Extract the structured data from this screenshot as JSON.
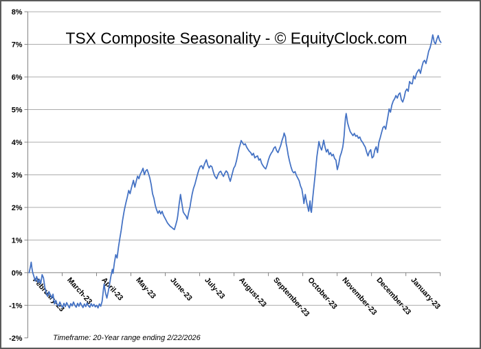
{
  "chart_data": {
    "type": "line",
    "title": "TSX Composite Seasonality - © EquityClock.com",
    "footer": "Timeframe:  20-Year range ending 2/22/2026",
    "legend": null,
    "grid": true,
    "line_color": "#4472C4",
    "gridline_color": "#ABABAB",
    "axis_color": "#808080",
    "ylim": [
      -2,
      8
    ],
    "y_tick_values": [
      8,
      7,
      6,
      5,
      4,
      3,
      2,
      1,
      0,
      -1,
      -2
    ],
    "y_tick_labels": [
      "8%",
      "7%",
      "6%",
      "5%",
      "4%",
      "3%",
      "2%",
      "1%",
      "0%",
      "-1%",
      "-2%"
    ],
    "x_labels": [
      "February-23",
      "March-23",
      "April-23",
      "May-23",
      "June-23",
      "July-23",
      "August-23",
      "September-23",
      "October-23",
      "November-23",
      "December-23",
      "January-23"
    ],
    "x_axis_note": "x of each point = position along the 12-month axis (0 = start of February, 605 = end of January, ~2.4 units per trading day); y = cumulative seasonal gain in percent",
    "series": [
      [
        2,
        0
      ],
      [
        4,
        0.2
      ],
      [
        5,
        0.32
      ],
      [
        6,
        0.15
      ],
      [
        7,
        0.02
      ],
      [
        9,
        -0.12
      ],
      [
        11,
        -0.26
      ],
      [
        13,
        -0.12
      ],
      [
        15,
        -0.3
      ],
      [
        17,
        -0.2
      ],
      [
        19,
        -0.34
      ],
      [
        21,
        -0.06
      ],
      [
        23,
        -0.16
      ],
      [
        25,
        -0.45
      ],
      [
        27,
        -0.62
      ],
      [
        29,
        -0.72
      ],
      [
        31,
        -0.58
      ],
      [
        33,
        -0.68
      ],
      [
        35,
        -0.78
      ],
      [
        37,
        -0.66
      ],
      [
        39,
        -0.96
      ],
      [
        41,
        -0.85
      ],
      [
        43,
        -0.97
      ],
      [
        45,
        -1.02
      ],
      [
        47,
        -0.9
      ],
      [
        49,
        -1
      ],
      [
        51,
        -1.07
      ],
      [
        53,
        -0.94
      ],
      [
        55,
        -1.04
      ],
      [
        57,
        -0.92
      ],
      [
        59,
        -1
      ],
      [
        61,
        -1.08
      ],
      [
        63,
        -0.95
      ],
      [
        65,
        -1.02
      ],
      [
        67,
        -0.9
      ],
      [
        69,
        -1
      ],
      [
        71,
        -1.06
      ],
      [
        73,
        -0.94
      ],
      [
        75,
        -1.03
      ],
      [
        77,
        -0.92
      ],
      [
        79,
        -1
      ],
      [
        81,
        -1.07
      ],
      [
        83,
        -0.96
      ],
      [
        85,
        -1.04
      ],
      [
        87,
        -0.93
      ],
      [
        89,
        -1.02
      ],
      [
        91,
        -1.06
      ],
      [
        93,
        -0.95
      ],
      [
        95,
        -1.03
      ],
      [
        97,
        -0.97
      ],
      [
        99,
        -1.05
      ],
      [
        101,
        -1
      ],
      [
        103,
        -1.08
      ],
      [
        105,
        -0.96
      ],
      [
        107,
        -1.03
      ],
      [
        109,
        -0.88
      ],
      [
        110,
        -0.7
      ],
      [
        111,
        -0.5
      ],
      [
        112,
        -0.35
      ],
      [
        113,
        -0.5
      ],
      [
        114,
        -0.62
      ],
      [
        116,
        -0.78
      ],
      [
        118,
        -0.58
      ],
      [
        120,
        -0.34
      ],
      [
        122,
        -0.1
      ],
      [
        124,
        0.1
      ],
      [
        125,
        -0.02
      ],
      [
        127,
        0.3
      ],
      [
        129,
        0.55
      ],
      [
        131,
        0.45
      ],
      [
        133,
        0.78
      ],
      [
        135,
        1.05
      ],
      [
        137,
        1.3
      ],
      [
        139,
        1.6
      ],
      [
        141,
        1.85
      ],
      [
        142,
        1.96
      ],
      [
        144,
        2.15
      ],
      [
        146,
        2.32
      ],
      [
        148,
        2.52
      ],
      [
        150,
        2.42
      ],
      [
        152,
        2.6
      ],
      [
        155,
        2.83
      ],
      [
        157,
        2.62
      ],
      [
        159,
        2.8
      ],
      [
        161,
        2.96
      ],
      [
        163,
        2.88
      ],
      [
        165,
        3.02
      ],
      [
        167,
        3.1
      ],
      [
        169,
        3.2
      ],
      [
        171,
        3
      ],
      [
        173,
        3.12
      ],
      [
        175,
        3.16
      ],
      [
        177,
        3.04
      ],
      [
        179,
        2.9
      ],
      [
        181,
        2.7
      ],
      [
        183,
        2.42
      ],
      [
        185,
        2.28
      ],
      [
        187,
        2.06
      ],
      [
        189,
        1.92
      ],
      [
        191,
        1.82
      ],
      [
        193,
        1.9
      ],
      [
        195,
        1.8
      ],
      [
        197,
        1.88
      ],
      [
        199,
        1.76
      ],
      [
        201,
        1.68
      ],
      [
        203,
        1.6
      ],
      [
        205,
        1.52
      ],
      [
        207,
        1.47
      ],
      [
        209,
        1.42
      ],
      [
        211,
        1.39
      ],
      [
        213,
        1.35
      ],
      [
        215,
        1.32
      ],
      [
        217,
        1.46
      ],
      [
        219,
        1.62
      ],
      [
        220,
        1.75
      ],
      [
        222,
        2.1
      ],
      [
        224,
        2.4
      ],
      [
        226,
        2.12
      ],
      [
        228,
        1.86
      ],
      [
        230,
        1.79
      ],
      [
        232,
        1.74
      ],
      [
        234,
        1.64
      ],
      [
        236,
        1.85
      ],
      [
        238,
        2.02
      ],
      [
        239,
        2.16
      ],
      [
        241,
        2.4
      ],
      [
        243,
        2.58
      ],
      [
        245,
        2.7
      ],
      [
        247,
        2.86
      ],
      [
        249,
        3.02
      ],
      [
        251,
        3.16
      ],
      [
        253,
        3.26
      ],
      [
        255,
        3.28
      ],
      [
        257,
        3.18
      ],
      [
        259,
        3.32
      ],
      [
        261,
        3.42
      ],
      [
        262,
        3.46
      ],
      [
        264,
        3.3
      ],
      [
        266,
        3.21
      ],
      [
        268,
        3.28
      ],
      [
        270,
        3.25
      ],
      [
        272,
        3.1
      ],
      [
        274,
        2.97
      ],
      [
        277,
        2.88
      ],
      [
        279,
        3
      ],
      [
        281,
        3.08
      ],
      [
        283,
        3.11
      ],
      [
        285,
        3.02
      ],
      [
        287,
        2.95
      ],
      [
        289,
        3.05
      ],
      [
        291,
        3.12
      ],
      [
        293,
        3.07
      ],
      [
        295,
        2.92
      ],
      [
        297,
        2.8
      ],
      [
        299,
        2.96
      ],
      [
        301,
        3.12
      ],
      [
        302,
        3.2
      ],
      [
        304,
        3.27
      ],
      [
        306,
        3.42
      ],
      [
        308,
        3.62
      ],
      [
        310,
        3.82
      ],
      [
        312,
        3.96
      ],
      [
        313,
        4.05
      ],
      [
        315,
        3.98
      ],
      [
        317,
        3.92
      ],
      [
        319,
        3.95
      ],
      [
        321,
        3.85
      ],
      [
        323,
        3.78
      ],
      [
        325,
        3.72
      ],
      [
        327,
        3.68
      ],
      [
        329,
        3.6
      ],
      [
        331,
        3.66
      ],
      [
        333,
        3.52
      ],
      [
        335,
        3.56
      ],
      [
        337,
        3.58
      ],
      [
        339,
        3.45
      ],
      [
        341,
        3.49
      ],
      [
        343,
        3.35
      ],
      [
        345,
        3.28
      ],
      [
        347,
        3.22
      ],
      [
        349,
        3.18
      ],
      [
        351,
        3.3
      ],
      [
        353,
        3.46
      ],
      [
        355,
        3.58
      ],
      [
        357,
        3.66
      ],
      [
        359,
        3.72
      ],
      [
        361,
        3.82
      ],
      [
        363,
        3.86
      ],
      [
        365,
        3.74
      ],
      [
        367,
        3.68
      ],
      [
        369,
        3.79
      ],
      [
        371,
        3.9
      ],
      [
        373,
        4.06
      ],
      [
        375,
        4.18
      ],
      [
        376,
        4.28
      ],
      [
        378,
        4.16
      ],
      [
        379,
        3.95
      ],
      [
        380,
        3.86
      ],
      [
        382,
        3.6
      ],
      [
        384,
        3.41
      ],
      [
        386,
        3.25
      ],
      [
        388,
        3.12
      ],
      [
        390,
        3.06
      ],
      [
        392,
        3.1
      ],
      [
        394,
        2.98
      ],
      [
        396,
        2.9
      ],
      [
        398,
        2.82
      ],
      [
        400,
        2.66
      ],
      [
        402,
        2.56
      ],
      [
        404,
        2.3
      ],
      [
        405,
        2.12
      ],
      [
        407,
        2.4
      ],
      [
        409,
        2.16
      ],
      [
        411,
        1.98
      ],
      [
        412,
        1.88
      ],
      [
        414,
        2.2
      ],
      [
        415,
        1.92
      ],
      [
        416,
        1.85
      ],
      [
        418,
        2.3
      ],
      [
        420,
        2.7
      ],
      [
        422,
        3.1
      ],
      [
        424,
        3.55
      ],
      [
        426,
        3.85
      ],
      [
        427,
        4.02
      ],
      [
        429,
        3.85
      ],
      [
        431,
        3.76
      ],
      [
        433,
        3.95
      ],
      [
        434,
        4.06
      ],
      [
        436,
        3.85
      ],
      [
        438,
        3.7
      ],
      [
        440,
        3.78
      ],
      [
        442,
        3.62
      ],
      [
        444,
        3.68
      ],
      [
        446,
        3.58
      ],
      [
        448,
        3.63
      ],
      [
        450,
        3.5
      ],
      [
        452,
        3.45
      ],
      [
        454,
        3.16
      ],
      [
        456,
        3.32
      ],
      [
        458,
        3.56
      ],
      [
        460,
        3.68
      ],
      [
        462,
        3.85
      ],
      [
        463,
        4
      ],
      [
        464,
        4.2
      ],
      [
        465,
        4.5
      ],
      [
        466,
        4.75
      ],
      [
        467,
        4.88
      ],
      [
        468,
        4.75
      ],
      [
        469,
        4.6
      ],
      [
        471,
        4.45
      ],
      [
        473,
        4.32
      ],
      [
        475,
        4.26
      ],
      [
        477,
        4.2
      ],
      [
        479,
        4.27
      ],
      [
        481,
        4.18
      ],
      [
        483,
        4.21
      ],
      [
        485,
        4.12
      ],
      [
        487,
        4.16
      ],
      [
        489,
        4.05
      ],
      [
        491,
        4
      ],
      [
        493,
        3.92
      ],
      [
        495,
        3.85
      ],
      [
        497,
        3.7
      ],
      [
        499,
        3.58
      ],
      [
        501,
        3.71
      ],
      [
        503,
        3.77
      ],
      [
        505,
        3.52
      ],
      [
        507,
        3.56
      ],
      [
        509,
        3.76
      ],
      [
        511,
        3.86
      ],
      [
        513,
        3.68
      ],
      [
        515,
        4
      ],
      [
        517,
        4.14
      ],
      [
        519,
        4.3
      ],
      [
        521,
        4.45
      ],
      [
        523,
        4.49
      ],
      [
        525,
        4.4
      ],
      [
        527,
        4.64
      ],
      [
        529,
        4.88
      ],
      [
        530,
        5.02
      ],
      [
        532,
        4.92
      ],
      [
        534,
        5.14
      ],
      [
        536,
        5.26
      ],
      [
        538,
        5.33
      ],
      [
        540,
        5.43
      ],
      [
        542,
        5.35
      ],
      [
        544,
        5.47
      ],
      [
        546,
        5.51
      ],
      [
        548,
        5.3
      ],
      [
        550,
        5.23
      ],
      [
        552,
        5.36
      ],
      [
        554,
        5.56
      ],
      [
        556,
        5.63
      ],
      [
        558,
        5.56
      ],
      [
        560,
        5.86
      ],
      [
        562,
        5.8
      ],
      [
        564,
        5.79
      ],
      [
        566,
        6.03
      ],
      [
        568,
        5.94
      ],
      [
        570,
        6.1
      ],
      [
        572,
        6.18
      ],
      [
        574,
        6.23
      ],
      [
        576,
        6.11
      ],
      [
        578,
        6.31
      ],
      [
        580,
        6.46
      ],
      [
        582,
        6.51
      ],
      [
        584,
        6.41
      ],
      [
        586,
        6.59
      ],
      [
        588,
        6.79
      ],
      [
        590,
        6.89
      ],
      [
        592,
        7.06
      ],
      [
        594,
        7.29
      ],
      [
        595,
        7.2
      ],
      [
        596,
        7.08
      ],
      [
        598,
        7.01
      ],
      [
        600,
        7.16
      ],
      [
        602,
        7.27
      ],
      [
        604,
        7.12
      ],
      [
        606,
        7.06
      ]
    ]
  }
}
